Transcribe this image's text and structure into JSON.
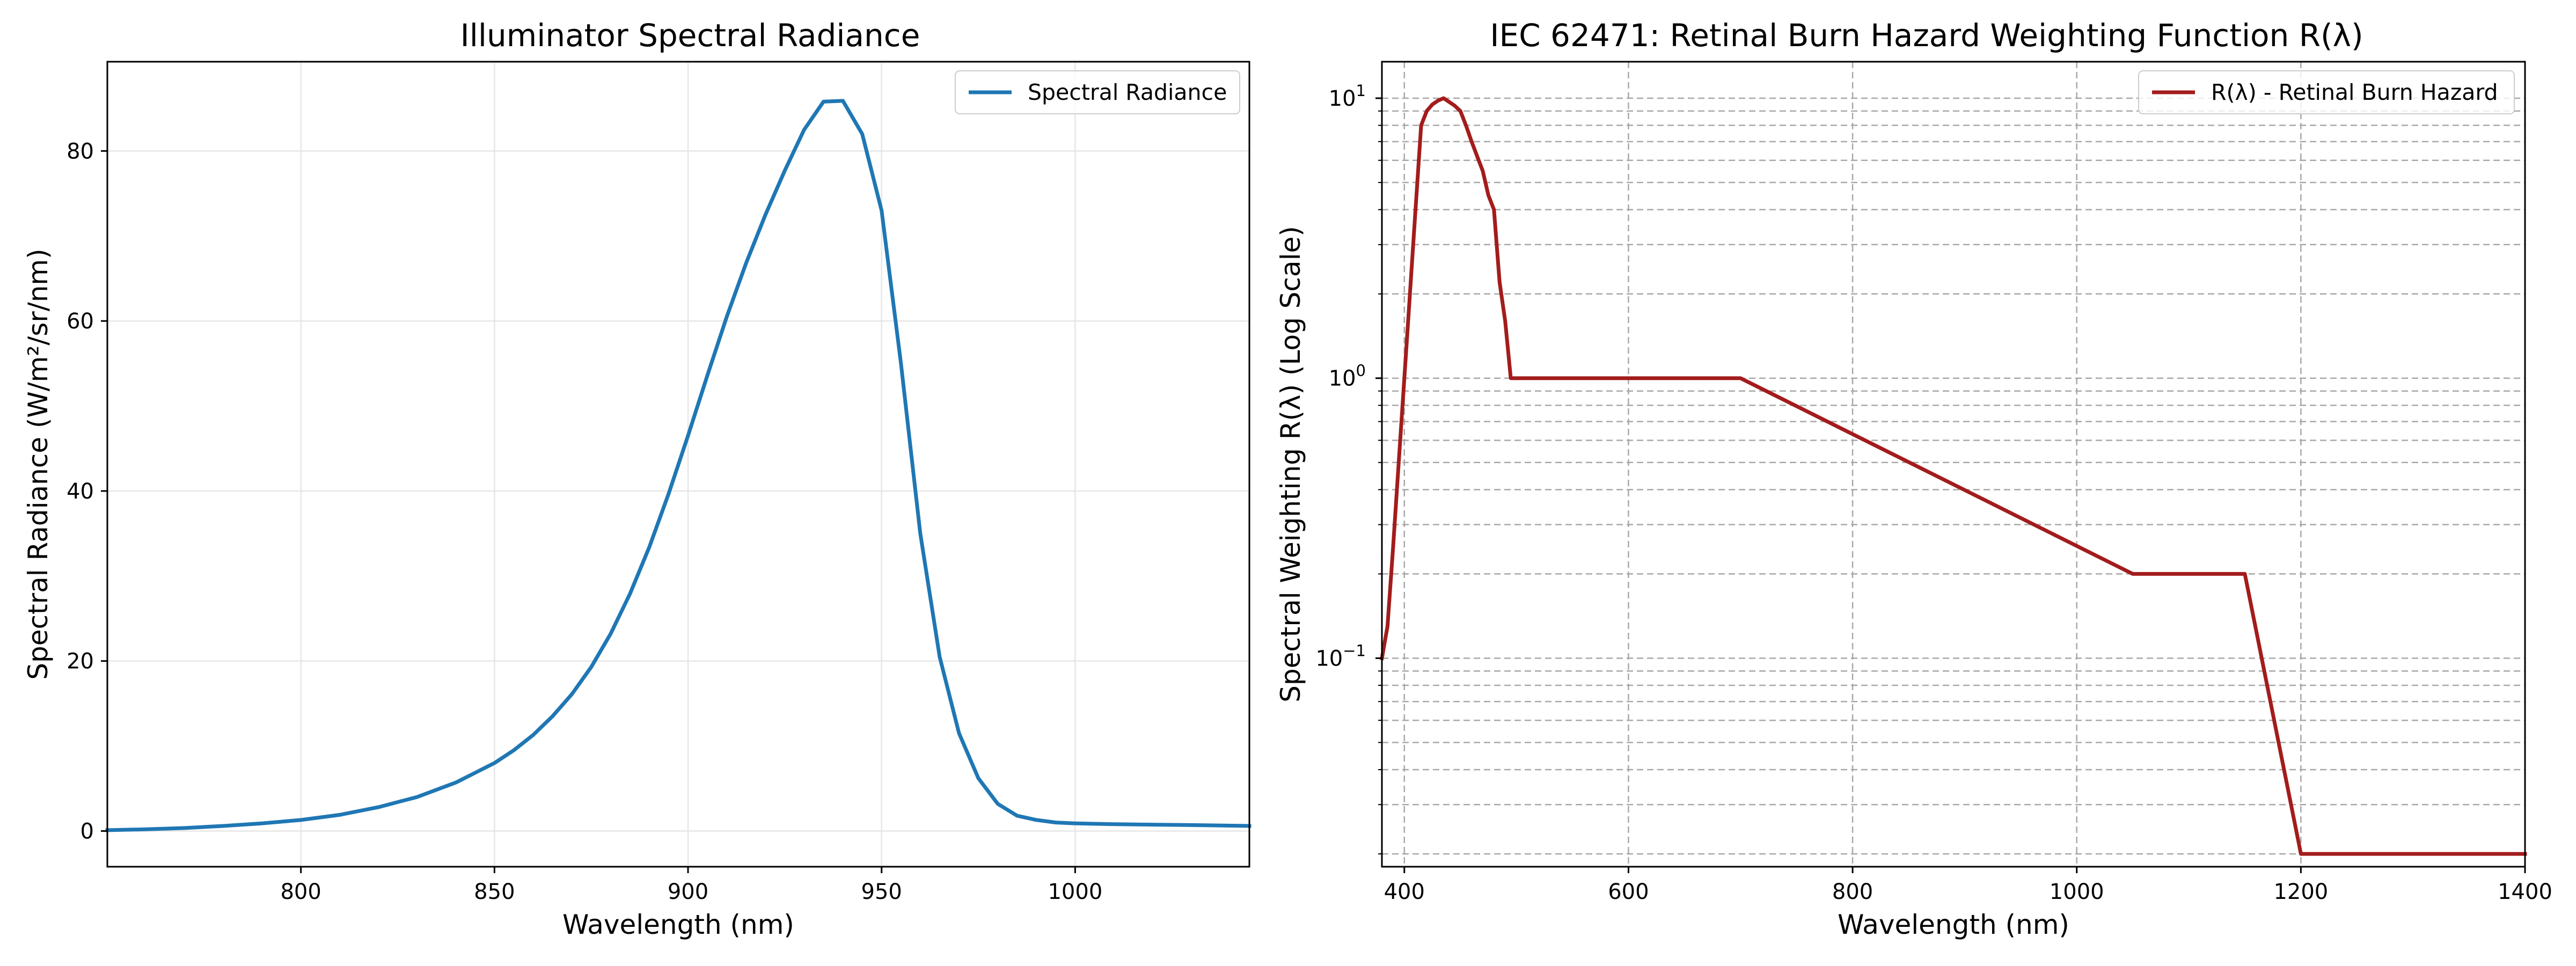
{
  "chart_data": [
    {
      "type": "line",
      "title": "Illuminator Spectral Radiance",
      "xlabel": "Wavelength (nm)",
      "ylabel": "Spectral Radiance (W/m²/sr/nm)",
      "xlim": [
        750,
        1045
      ],
      "ylim": [
        -4.2,
        90.5
      ],
      "xticks": [
        800,
        850,
        900,
        950,
        1000
      ],
      "yticks": [
        0,
        20,
        40,
        60,
        80
      ],
      "grid": true,
      "legend_position": "top-right",
      "series": [
        {
          "name": "Spectral Radiance",
          "color": "#1f77b4",
          "x": [
            750,
            760,
            770,
            780,
            790,
            800,
            810,
            820,
            830,
            840,
            850,
            855,
            860,
            865,
            870,
            875,
            880,
            885,
            890,
            895,
            900,
            905,
            910,
            915,
            920,
            925,
            930,
            935,
            940,
            945,
            950,
            955,
            960,
            965,
            970,
            975,
            980,
            985,
            990,
            995,
            1000,
            1010,
            1020,
            1030,
            1045
          ],
          "y": [
            0.1,
            0.2,
            0.35,
            0.6,
            0.9,
            1.3,
            1.9,
            2.8,
            4.0,
            5.7,
            8.0,
            9.5,
            11.3,
            13.5,
            16.1,
            19.3,
            23.2,
            27.9,
            33.4,
            39.7,
            46.5,
            53.6,
            60.5,
            66.8,
            72.5,
            77.7,
            82.5,
            85.8,
            85.9,
            82.0,
            73.0,
            55.0,
            35.0,
            20.5,
            11.5,
            6.2,
            3.2,
            1.8,
            1.3,
            1.0,
            0.9,
            0.8,
            0.75,
            0.7,
            0.6
          ]
        }
      ]
    },
    {
      "type": "line",
      "title": "IEC 62471: Retinal Burn Hazard Weighting Function R(λ)",
      "xlabel": "Wavelength (nm)",
      "ylabel": "Spectral Weighting R(λ) (Log Scale)",
      "xlim": [
        380,
        1400
      ],
      "ylim": [
        0.018,
        13.5
      ],
      "yscale": "log",
      "xticks": [
        400,
        600,
        800,
        1000,
        1200,
        1400
      ],
      "yticks": [
        {
          "value": 0.1,
          "base": "10",
          "exp": "−1"
        },
        {
          "value": 1,
          "base": "10",
          "exp": "0"
        },
        {
          "value": 10,
          "base": "10",
          "exp": "1"
        }
      ],
      "grid": true,
      "legend_position": "top-right",
      "series": [
        {
          "name": "R(λ) - Retinal Burn Hazard",
          "color": "#a31c1c",
          "x": [
            380,
            385,
            390,
            395,
            400,
            405,
            410,
            415,
            420,
            425,
            430,
            435,
            440,
            445,
            450,
            455,
            460,
            465,
            470,
            475,
            480,
            485,
            490,
            495,
            500,
            700,
            1050,
            1150,
            1200,
            1400
          ],
          "y": [
            0.1,
            0.13,
            0.25,
            0.5,
            1.0,
            2.0,
            4.0,
            8.0,
            9.0,
            9.5,
            9.8,
            10.0,
            9.7,
            9.4,
            9.0,
            8.0,
            7.0,
            6.2,
            5.5,
            4.5,
            4.0,
            2.2,
            1.6,
            1.0,
            1.0,
            1.0,
            0.2,
            0.2,
            0.02,
            0.02
          ]
        }
      ]
    }
  ]
}
